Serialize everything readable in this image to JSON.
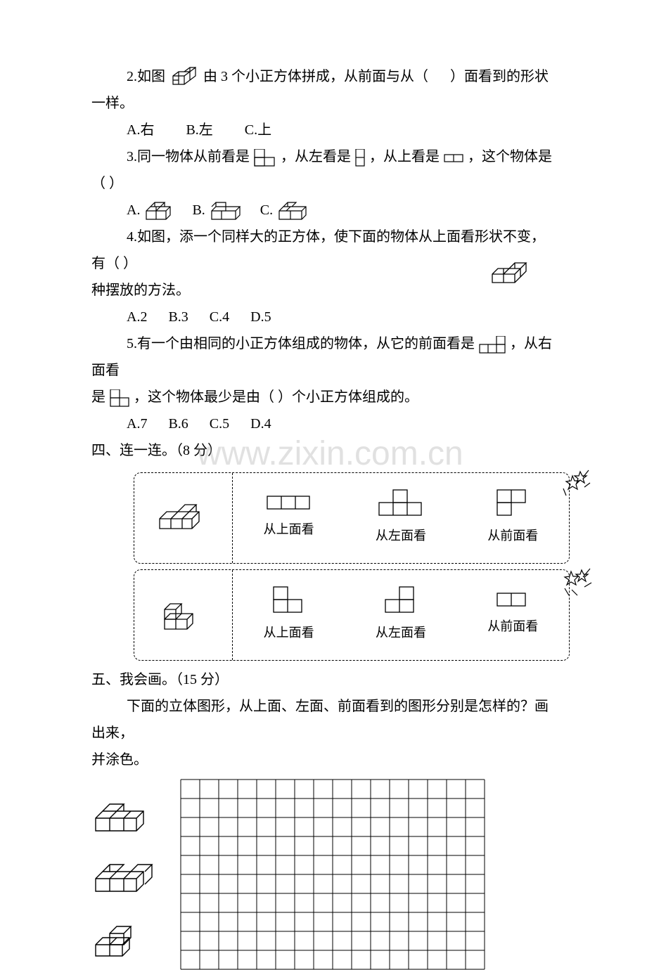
{
  "colors": {
    "text": "#000000",
    "bg": "#ffffff",
    "grid": "#000000",
    "watermark": "#ababab"
  },
  "watermark": "www.zixin.com.cn",
  "q2": {
    "pre": "2.如图",
    "mid": "由 3 个小正方体拼成，从前面与从（",
    "post": "）面看到的形状一样。",
    "options": [
      "A.右",
      "B.左",
      "C.上"
    ]
  },
  "q3": {
    "pre": "3.同一物体从前看是",
    "mid1": "，从左看是",
    "mid2": "，从上看是",
    "end": "，这个物体是（      ）",
    "options": [
      "A.",
      "B.",
      "C."
    ]
  },
  "q4": {
    "l1": "4.如图，添一个同样大的正方体，使下面的物体从上面看形状不变，有（      ）",
    "l2": "种摆放的方法。",
    "options": [
      "A.2",
      "B.3",
      "C.4",
      "D.5"
    ]
  },
  "q5": {
    "pre": "5.有一个由相同的小正方体组成的物体，从它的前面看是",
    "mid": "，从右面看",
    "l2a": "是",
    "l2b": "，这个物体最少是由（      ）个小正方体组成的。",
    "options": [
      "A.7",
      "B.6",
      "C.5",
      "D.4"
    ]
  },
  "sec4": {
    "title": "四、连一连。（8 分）",
    "labels": [
      "从上面看",
      "从左面看",
      "从前面看"
    ]
  },
  "sec5": {
    "title": "五、我会画。（15 分）",
    "prompt1": "下面的立体图形，从上面、左面、前面看到的图形分别是怎样的？画出来，",
    "prompt2": "并涂色。",
    "grid": {
      "rows": 10,
      "cols": 16,
      "cell": 27
    }
  }
}
